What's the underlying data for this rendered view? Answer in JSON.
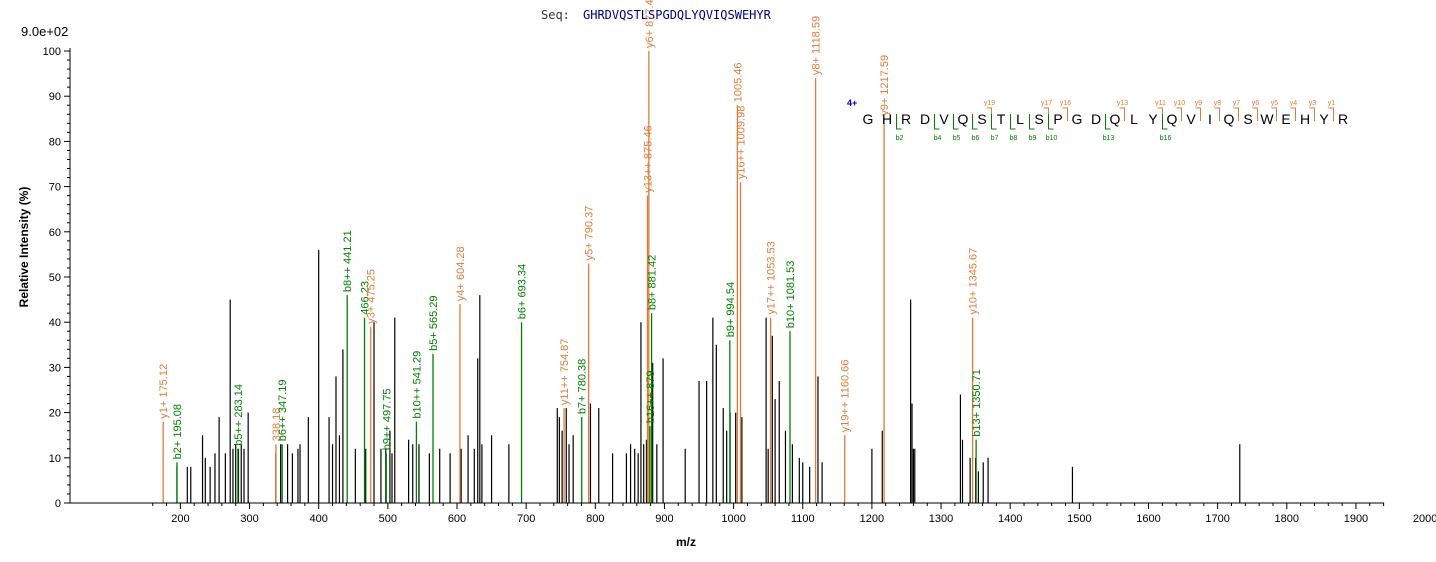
{
  "header": {
    "seq_label": "Seq:",
    "sequence": "GHRDVQSTLSPGDQLYQVIQSWEHYR",
    "scale_label": "9.0e+02"
  },
  "colors": {
    "b_ion": "#008000",
    "y_ion": "#e07b39",
    "peak": "#000000",
    "charge": "#0000aa"
  },
  "chart_data": {
    "type": "bar",
    "title": "",
    "xlabel": "m/z",
    "ylabel": "Relative   Intensity (%)",
    "xlim": [
      150,
      2040
    ],
    "ylim": [
      0,
      100
    ],
    "x_ticks_labeled": [
      200,
      300,
      400,
      500,
      600,
      700,
      800,
      900,
      1000,
      1100,
      1200,
      1300,
      1400,
      1500,
      1600,
      1700,
      1800,
      1900,
      2000
    ],
    "y_ticks_labeled": [
      0,
      10,
      20,
      30,
      40,
      50,
      60,
      70,
      80,
      90,
      100
    ],
    "unlabeled_peaks": [
      [
        195,
        8
      ],
      [
        210,
        8
      ],
      [
        215,
        8
      ],
      [
        232,
        15
      ],
      [
        236,
        10
      ],
      [
        243,
        8
      ],
      [
        250,
        11
      ],
      [
        256,
        19
      ],
      [
        265,
        11
      ],
      [
        272,
        45
      ],
      [
        276,
        12
      ],
      [
        280,
        13
      ],
      [
        284,
        12
      ],
      [
        288,
        13
      ],
      [
        292,
        12
      ],
      [
        298,
        20
      ],
      [
        338,
        11
      ],
      [
        345,
        13
      ],
      [
        355,
        13
      ],
      [
        362,
        11
      ],
      [
        370,
        12
      ],
      [
        373,
        13
      ],
      [
        385,
        19
      ],
      [
        400,
        56
      ],
      [
        415,
        19
      ],
      [
        420,
        13
      ],
      [
        425,
        28
      ],
      [
        430,
        15
      ],
      [
        435,
        34
      ],
      [
        453,
        12
      ],
      [
        468,
        12
      ],
      [
        480,
        40
      ],
      [
        490,
        12
      ],
      [
        497,
        12
      ],
      [
        503,
        16
      ],
      [
        506,
        11
      ],
      [
        510,
        41
      ],
      [
        530,
        14
      ],
      [
        536,
        13
      ],
      [
        545,
        13
      ],
      [
        560,
        11
      ],
      [
        575,
        12
      ],
      [
        590,
        11
      ],
      [
        606,
        12
      ],
      [
        616,
        15
      ],
      [
        625,
        12
      ],
      [
        630,
        32
      ],
      [
        633,
        46
      ],
      [
        636,
        13
      ],
      [
        650,
        15
      ],
      [
        675,
        13
      ],
      [
        745,
        21
      ],
      [
        748,
        19
      ],
      [
        752,
        16
      ],
      [
        758,
        21
      ],
      [
        762,
        13
      ],
      [
        768,
        15
      ],
      [
        793,
        22
      ],
      [
        805,
        21
      ],
      [
        825,
        11
      ],
      [
        845,
        11
      ],
      [
        851,
        13
      ],
      [
        857,
        12
      ],
      [
        862,
        11
      ],
      [
        866,
        40
      ],
      [
        870,
        13
      ],
      [
        874,
        14
      ],
      [
        883,
        31
      ],
      [
        889,
        13
      ],
      [
        898,
        32
      ],
      [
        930,
        12
      ],
      [
        950,
        27
      ],
      [
        961,
        27
      ],
      [
        970,
        41
      ],
      [
        975,
        35
      ],
      [
        985,
        21
      ],
      [
        990,
        16
      ],
      [
        995,
        20
      ],
      [
        1003,
        20
      ],
      [
        1012,
        19
      ],
      [
        1047,
        41
      ],
      [
        1050,
        12
      ],
      [
        1056,
        37
      ],
      [
        1060,
        23
      ],
      [
        1066,
        27
      ],
      [
        1075,
        16
      ],
      [
        1085,
        13
      ],
      [
        1095,
        10
      ],
      [
        1100,
        9
      ],
      [
        1110,
        8
      ],
      [
        1122,
        28
      ],
      [
        1128,
        9
      ],
      [
        1200,
        12
      ],
      [
        1215,
        16
      ],
      [
        1256,
        45
      ],
      [
        1258,
        22
      ],
      [
        1260,
        12
      ],
      [
        1262,
        12
      ],
      [
        1328,
        24
      ],
      [
        1331,
        14
      ],
      [
        1342,
        10
      ],
      [
        1350,
        10
      ],
      [
        1354,
        7
      ],
      [
        1361,
        9
      ],
      [
        1368,
        10
      ],
      [
        1490,
        8
      ],
      [
        1732,
        13
      ]
    ],
    "labeled_peaks": [
      {
        "x": 175.12,
        "y": 18,
        "ion": "y",
        "label": "y1+ 175.12"
      },
      {
        "x": 195.08,
        "y": 9,
        "ion": "b",
        "label": "b2+ 195.08"
      },
      {
        "x": 283.14,
        "y": 12,
        "ion": "b",
        "label": "b5++ 283.14"
      },
      {
        "x": 338.18,
        "y": 13,
        "ion": "y",
        "label": "338.18"
      },
      {
        "x": 347.19,
        "y": 13,
        "ion": "b",
        "label": "b6++ 347.19"
      },
      {
        "x": 441.21,
        "y": 46,
        "ion": "b",
        "label": "b8++ 441.21"
      },
      {
        "x": 466.23,
        "y": 41,
        "ion": "b",
        "label": "466.23"
      },
      {
        "x": 475.25,
        "y": 39,
        "ion": "y",
        "label": "y3+ 475.25"
      },
      {
        "x": 497.75,
        "y": 11,
        "ion": "b",
        "label": "b9++ 497.75"
      },
      {
        "x": 541.29,
        "y": 18,
        "ion": "b",
        "label": "b10++ 541.29"
      },
      {
        "x": 565.29,
        "y": 33,
        "ion": "b",
        "label": "b5+ 565.29"
      },
      {
        "x": 604.28,
        "y": 44,
        "ion": "y",
        "label": "y4+ 604.28"
      },
      {
        "x": 693.34,
        "y": 40,
        "ion": "b",
        "label": "b6+ 693.34"
      },
      {
        "x": 754.87,
        "y": 21,
        "ion": "y",
        "label": "y11++ 754.87"
      },
      {
        "x": 780.38,
        "y": 19,
        "ion": "b",
        "label": "b7+ 780.38"
      },
      {
        "x": 790.37,
        "y": 53,
        "ion": "y",
        "label": "y5+ 790.37"
      },
      {
        "x": 875.46,
        "y": 68,
        "ion": "y",
        "label": "y13++ 875.46"
      },
      {
        "x": 877.4,
        "y": 100,
        "ion": "y",
        "label": "y6+ 877.40"
      },
      {
        "x": 879.0,
        "y": 17,
        "ion": "b",
        "label": "b16++ 879"
      },
      {
        "x": 881.42,
        "y": 42,
        "ion": "b",
        "label": "b8+ 881.42"
      },
      {
        "x": 994.54,
        "y": 36,
        "ion": "b",
        "label": "b9+ 994.54"
      },
      {
        "x": 1005.46,
        "y": 88,
        "ion": "y",
        "label": "1005.46"
      },
      {
        "x": 1009.98,
        "y": 71,
        "ion": "y",
        "label": "y16++ 1009.98"
      },
      {
        "x": 1053.53,
        "y": 41,
        "ion": "y",
        "label": "y17++ 1053.53"
      },
      {
        "x": 1081.53,
        "y": 38,
        "ion": "b",
        "label": "b10+ 1081.53"
      },
      {
        "x": 1118.59,
        "y": 94,
        "ion": "y",
        "label": "y8+ 1118.59"
      },
      {
        "x": 1160.66,
        "y": 15,
        "ion": "y",
        "label": "y19++ 1160.66"
      },
      {
        "x": 1217.59,
        "y": 85,
        "ion": "y",
        "label": "y9+ 1217.59"
      },
      {
        "x": 1345.67,
        "y": 41,
        "ion": "y",
        "label": "y10+ 1345.67"
      },
      {
        "x": 1350.71,
        "y": 14,
        "ion": "b",
        "label": "b13+ 1350.71"
      }
    ],
    "peptide_map": {
      "charge": "4+",
      "residues": [
        "G",
        "H",
        "R",
        "D",
        "V",
        "Q",
        "S",
        "T",
        "L",
        "S",
        "P",
        "G",
        "D",
        "Q",
        "L",
        "Y",
        "Q",
        "V",
        "I",
        "Q",
        "S",
        "W",
        "E",
        "H",
        "Y",
        "R"
      ],
      "y_marks": [
        {
          "after": 7,
          "label": "y19"
        },
        {
          "after": 10,
          "label": "y17"
        },
        {
          "after": 11,
          "label": "y16"
        },
        {
          "after": 14,
          "label": "y13"
        },
        {
          "after": 16,
          "label": "y11"
        },
        {
          "after": 17,
          "label": "y10"
        },
        {
          "after": 18,
          "label": "y9"
        },
        {
          "after": 19,
          "label": "y8"
        },
        {
          "after": 20,
          "label": "y7"
        },
        {
          "after": 21,
          "label": "y6"
        },
        {
          "after": 22,
          "label": "y5"
        },
        {
          "after": 23,
          "label": "y4"
        },
        {
          "after": 24,
          "label": "y3"
        },
        {
          "after": 25,
          "label": "y1"
        }
      ],
      "b_marks": [
        {
          "after": 2,
          "label": "b2"
        },
        {
          "after": 4,
          "label": "b4"
        },
        {
          "after": 5,
          "label": "b5"
        },
        {
          "after": 6,
          "label": "b6"
        },
        {
          "after": 7,
          "label": "b7"
        },
        {
          "after": 8,
          "label": "b8"
        },
        {
          "after": 9,
          "label": "b9"
        },
        {
          "after": 10,
          "label": "b10"
        },
        {
          "after": 13,
          "label": "b13"
        },
        {
          "after": 16,
          "label": "b16"
        }
      ]
    }
  }
}
